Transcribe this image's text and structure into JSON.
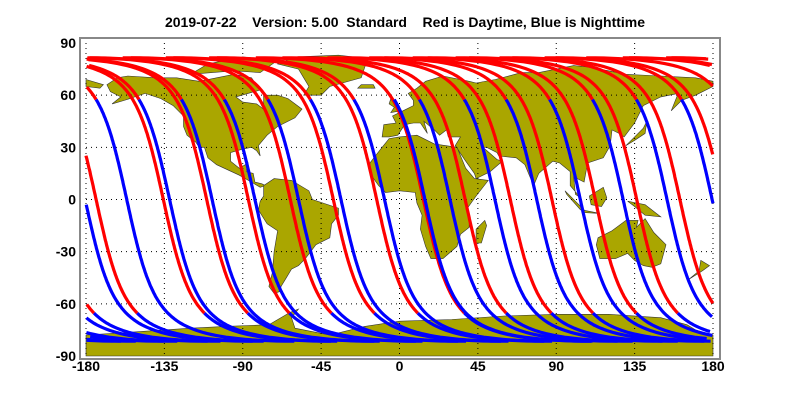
{
  "chart_data": {
    "type": "line",
    "title": "2019-07-22    Version: 5.00  Standard    Red is Daytime, Blue is Nighttime",
    "xlim": [
      -180,
      180
    ],
    "ylim": [
      -90,
      90
    ],
    "x_ticks": [
      "-180",
      "-135",
      "-90",
      "-45",
      "0",
      "45",
      "90",
      "135",
      "180"
    ],
    "y_ticks": [
      "90",
      "60",
      "30",
      "0",
      "-30",
      "-60",
      "-90"
    ],
    "grid": true,
    "background": "world map, land filled",
    "colors": {
      "daytime": "#ff0000",
      "nighttime": "#0000ff",
      "land": "#aaa600",
      "frame": "#888888"
    },
    "max_latitude": 81.5,
    "series": [
      {
        "name": "Daytime",
        "pass": "descending",
        "color": "#ff0000",
        "equator_crossing_longitudes": [
          -174.2,
          -135.6,
          -110.7,
          -86.8,
          -62.7,
          -38,
          -13.1,
          13.7,
          37.7,
          63.6,
          87.5,
          112.4,
          136.2,
          161
        ]
      },
      {
        "name": "Nighttime",
        "pass": "ascending",
        "color": "#0000ff",
        "equator_crossing_longitudes": [
          -156.6,
          -132,
          -107.6,
          -83,
          -58,
          -33.6,
          -8.6,
          14.6,
          29,
          54.8,
          78.8,
          103.8,
          128.4,
          153.6,
          179.5
        ]
      }
    ]
  }
}
